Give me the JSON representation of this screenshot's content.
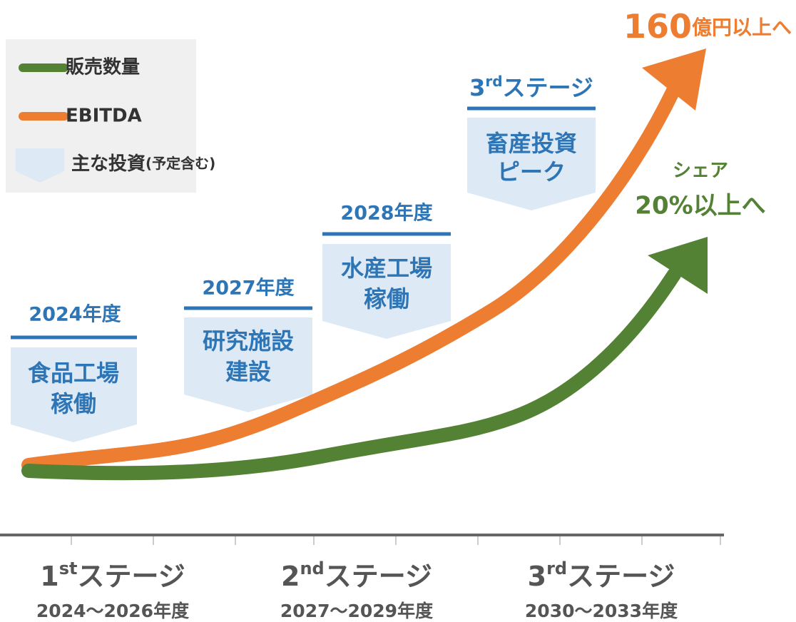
{
  "legend": [
    {
      "label": "販売数量"
    },
    {
      "label": "EBITDA"
    },
    {
      "label": "主な投資",
      "note": "(予定含む)"
    }
  ],
  "callouts": [
    {
      "year": "2024年度",
      "lines": [
        "食品工場",
        "稼働"
      ]
    },
    {
      "year": "2027年度",
      "lines": [
        "研究施設",
        "建設"
      ]
    },
    {
      "year": "2028年度",
      "lines": [
        "水産工場",
        "稼働"
      ]
    },
    {
      "year_num": "3",
      "year_sup": "rd",
      "year_name": "ステージ",
      "lines": [
        "畜産投資",
        "ピーク"
      ]
    }
  ],
  "annotations": {
    "ebitda_num": "160",
    "ebitda_text": "億円以上へ",
    "share_title": "シェア",
    "share_text": "20%以上へ"
  },
  "stages": [
    {
      "num": "1",
      "sup": "st",
      "name": "ステージ",
      "years": "2024～2026年度"
    },
    {
      "num": "2",
      "sup": "nd",
      "name": "ステージ",
      "years": "2027～2029年度"
    },
    {
      "num": "3",
      "sup": "rd",
      "name": "ステージ",
      "years": "2030～2033年度"
    }
  ]
}
